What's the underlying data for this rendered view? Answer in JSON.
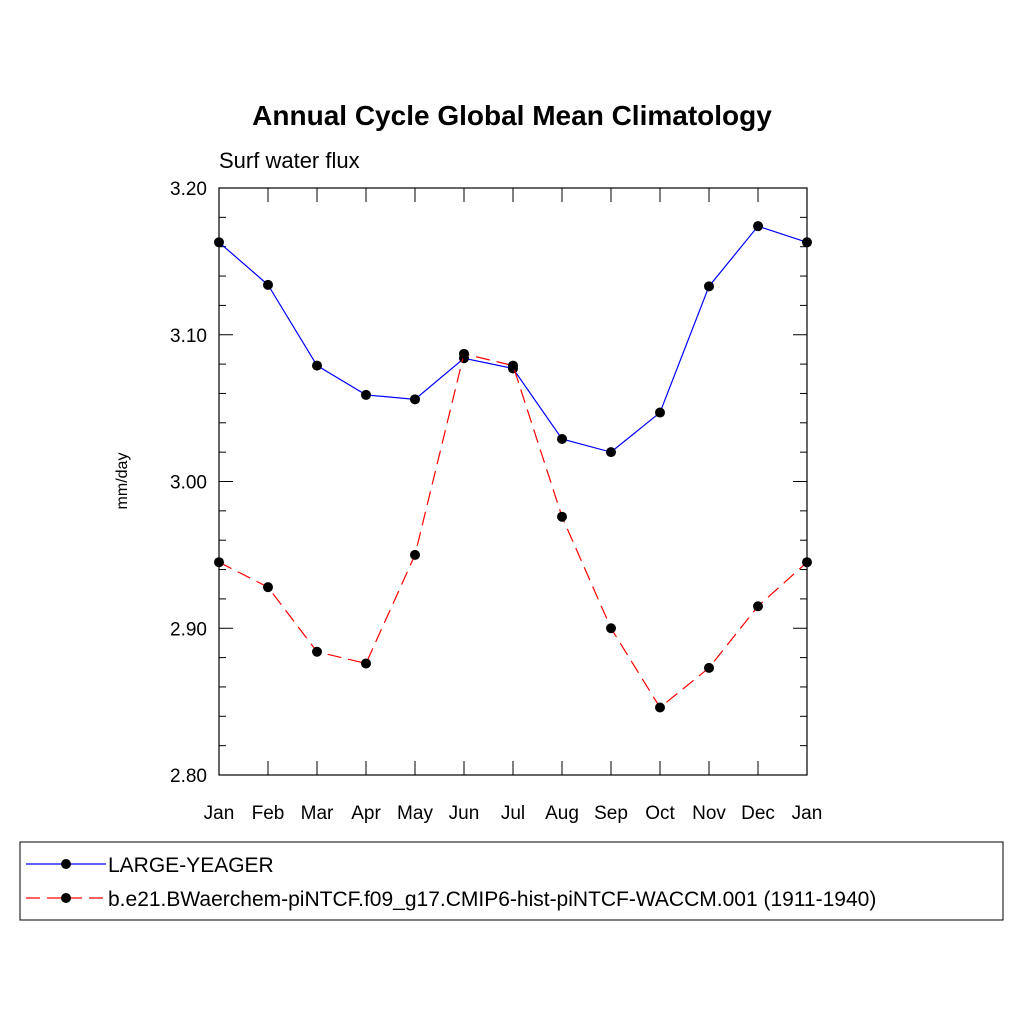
{
  "chart_data": {
    "type": "line",
    "title": "Annual Cycle Global Mean Climatology",
    "subtitle": "Surf water flux",
    "xlabel": "",
    "ylabel": "mm/day",
    "categories": [
      "Jan",
      "Feb",
      "Mar",
      "Apr",
      "May",
      "Jun",
      "Jul",
      "Aug",
      "Sep",
      "Oct",
      "Nov",
      "Dec",
      "Jan"
    ],
    "ylim": [
      2.8,
      3.2
    ],
    "yticks": [
      "2.80",
      "2.90",
      "3.00",
      "3.10",
      "3.20"
    ],
    "grid": false,
    "legend_position": "bottom",
    "series": [
      {
        "name": "LARGE-YEAGER",
        "color": "#0000ff",
        "line_style": "solid",
        "marker": "filled-circle",
        "values": [
          3.163,
          3.134,
          3.079,
          3.059,
          3.056,
          3.084,
          3.077,
          3.029,
          3.02,
          3.047,
          3.133,
          3.174,
          3.163
        ]
      },
      {
        "name": "b.e21.BWaerchem-piNTCF.f09_g17.CMIP6-hist-piNTCF-WACCM.001 (1911-1940)",
        "color": "#ff0000",
        "line_style": "dashed",
        "marker": "filled-circle",
        "values": [
          2.945,
          2.928,
          2.884,
          2.876,
          2.95,
          3.087,
          3.079,
          2.976,
          2.9,
          2.846,
          2.873,
          2.915,
          2.945
        ]
      }
    ]
  }
}
